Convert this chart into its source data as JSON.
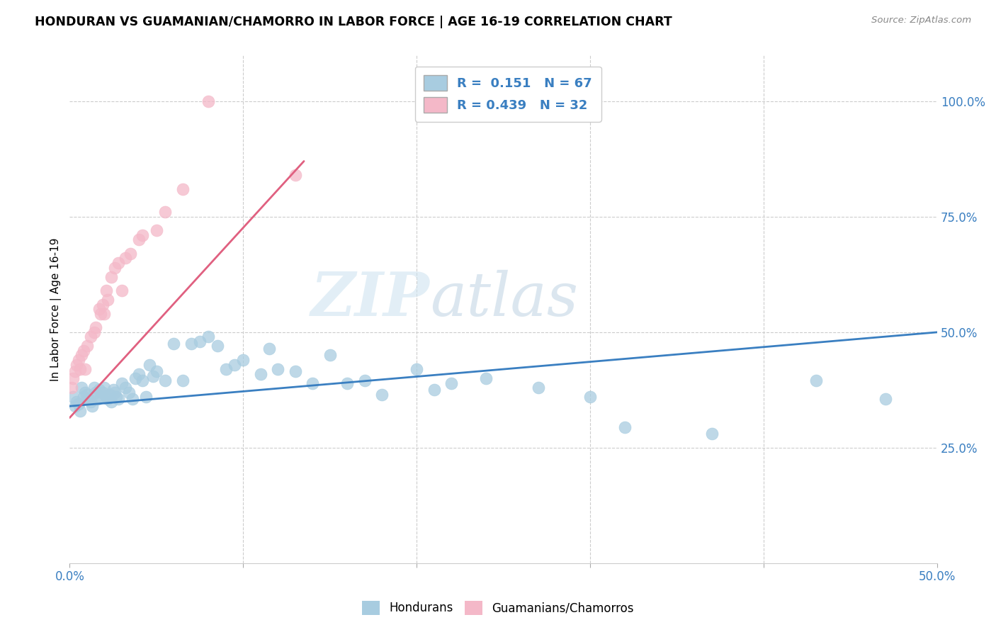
{
  "title": "HONDURAN VS GUAMANIAN/CHAMORRO IN LABOR FORCE | AGE 16-19 CORRELATION CHART",
  "source": "Source: ZipAtlas.com",
  "ylabel": "In Labor Force | Age 16-19",
  "xlim": [
    0.0,
    0.5
  ],
  "ylim": [
    0.0,
    1.1
  ],
  "yticks_right": [
    0.25,
    0.5,
    0.75,
    1.0
  ],
  "ytick_labels_right": [
    "25.0%",
    "50.0%",
    "75.0%",
    "100.0%"
  ],
  "blue_R": 0.151,
  "blue_N": 67,
  "pink_R": 0.439,
  "pink_N": 32,
  "blue_color": "#a8cce0",
  "pink_color": "#f4b8c8",
  "blue_trend_color": "#3a7fc1",
  "pink_trend_color": "#e06080",
  "watermark_left": "ZIP",
  "watermark_right": "atlas",
  "blue_scatter_x": [
    0.002,
    0.003,
    0.004,
    0.005,
    0.006,
    0.007,
    0.008,
    0.009,
    0.01,
    0.011,
    0.012,
    0.013,
    0.014,
    0.015,
    0.016,
    0.017,
    0.018,
    0.019,
    0.02,
    0.021,
    0.022,
    0.023,
    0.024,
    0.025,
    0.026,
    0.027,
    0.028,
    0.03,
    0.032,
    0.034,
    0.036,
    0.038,
    0.04,
    0.042,
    0.044,
    0.046,
    0.048,
    0.05,
    0.055,
    0.06,
    0.065,
    0.07,
    0.075,
    0.08,
    0.085,
    0.09,
    0.095,
    0.1,
    0.11,
    0.115,
    0.12,
    0.13,
    0.14,
    0.15,
    0.16,
    0.17,
    0.18,
    0.2,
    0.21,
    0.22,
    0.24,
    0.27,
    0.3,
    0.32,
    0.37,
    0.43,
    0.47
  ],
  "blue_scatter_y": [
    0.36,
    0.34,
    0.35,
    0.345,
    0.33,
    0.38,
    0.36,
    0.37,
    0.365,
    0.355,
    0.35,
    0.34,
    0.38,
    0.37,
    0.355,
    0.375,
    0.36,
    0.37,
    0.38,
    0.36,
    0.355,
    0.365,
    0.35,
    0.375,
    0.37,
    0.36,
    0.355,
    0.39,
    0.38,
    0.37,
    0.355,
    0.4,
    0.41,
    0.395,
    0.36,
    0.43,
    0.405,
    0.415,
    0.395,
    0.475,
    0.395,
    0.475,
    0.48,
    0.49,
    0.47,
    0.42,
    0.43,
    0.44,
    0.41,
    0.465,
    0.42,
    0.415,
    0.39,
    0.45,
    0.39,
    0.395,
    0.365,
    0.42,
    0.375,
    0.39,
    0.4,
    0.38,
    0.36,
    0.295,
    0.28,
    0.395,
    0.355
  ],
  "pink_scatter_x": [
    0.001,
    0.002,
    0.003,
    0.004,
    0.005,
    0.006,
    0.007,
    0.008,
    0.009,
    0.01,
    0.012,
    0.014,
    0.015,
    0.017,
    0.018,
    0.019,
    0.02,
    0.021,
    0.022,
    0.024,
    0.026,
    0.028,
    0.03,
    0.032,
    0.035,
    0.04,
    0.042,
    0.05,
    0.055,
    0.065,
    0.08,
    0.13
  ],
  "pink_scatter_y": [
    0.38,
    0.4,
    0.415,
    0.43,
    0.44,
    0.42,
    0.45,
    0.46,
    0.42,
    0.47,
    0.49,
    0.5,
    0.51,
    0.55,
    0.54,
    0.56,
    0.54,
    0.59,
    0.57,
    0.62,
    0.64,
    0.65,
    0.59,
    0.66,
    0.67,
    0.7,
    0.71,
    0.72,
    0.76,
    0.81,
    1.0,
    0.84
  ],
  "blue_trend_x": [
    0.0,
    0.5
  ],
  "blue_trend_y": [
    0.34,
    0.5
  ],
  "pink_trend_x": [
    0.0,
    0.135
  ],
  "pink_trend_y": [
    0.315,
    0.87
  ]
}
